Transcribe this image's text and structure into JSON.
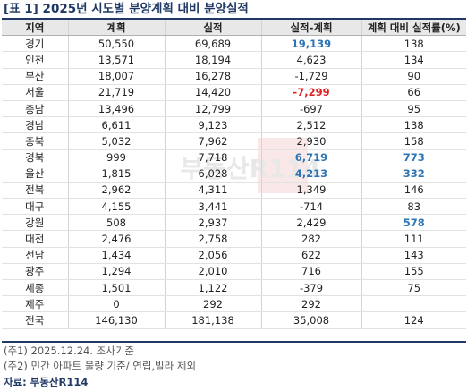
{
  "title": "[표 1] 2025년 시도별 분양계획 대비 분양실적",
  "columns": [
    "지역",
    "계획",
    "실적",
    "실적-계획",
    "계획 대비 실적률(%)"
  ],
  "rows": [
    {
      "region": "경기",
      "plan": "50,550",
      "actual": "69,689",
      "diff": "19,139",
      "rate": "138",
      "diff_style": "blue",
      "rate_style": ""
    },
    {
      "region": "인천",
      "plan": "13,571",
      "actual": "18,194",
      "diff": "4,623",
      "rate": "134",
      "diff_style": "",
      "rate_style": ""
    },
    {
      "region": "부산",
      "plan": "18,007",
      "actual": "16,278",
      "diff": "-1,729",
      "rate": "90",
      "diff_style": "",
      "rate_style": ""
    },
    {
      "region": "서울",
      "plan": "21,719",
      "actual": "14,420",
      "diff": "-7,299",
      "rate": "66",
      "diff_style": "red",
      "rate_style": ""
    },
    {
      "region": "충남",
      "plan": "13,496",
      "actual": "12,799",
      "diff": "-697",
      "rate": "95",
      "diff_style": "",
      "rate_style": ""
    },
    {
      "region": "경남",
      "plan": "6,611",
      "actual": "9,123",
      "diff": "2,512",
      "rate": "138",
      "diff_style": "",
      "rate_style": ""
    },
    {
      "region": "충북",
      "plan": "5,032",
      "actual": "7,962",
      "diff": "2,930",
      "rate": "158",
      "diff_style": "",
      "rate_style": ""
    },
    {
      "region": "경북",
      "plan": "999",
      "actual": "7,718",
      "diff": "6,719",
      "rate": "773",
      "diff_style": "blue",
      "rate_style": "blue"
    },
    {
      "region": "울산",
      "plan": "1,815",
      "actual": "6,028",
      "diff": "4,213",
      "rate": "332",
      "diff_style": "blue",
      "rate_style": "blue"
    },
    {
      "region": "전북",
      "plan": "2,962",
      "actual": "4,311",
      "diff": "1,349",
      "rate": "146",
      "diff_style": "",
      "rate_style": ""
    },
    {
      "region": "대구",
      "plan": "4,155",
      "actual": "3,441",
      "diff": "-714",
      "rate": "83",
      "diff_style": "",
      "rate_style": ""
    },
    {
      "region": "강원",
      "plan": "508",
      "actual": "2,937",
      "diff": "2,429",
      "rate": "578",
      "diff_style": "",
      "rate_style": "blue"
    },
    {
      "region": "대전",
      "plan": "2,476",
      "actual": "2,758",
      "diff": "282",
      "rate": "111",
      "diff_style": "",
      "rate_style": ""
    },
    {
      "region": "전남",
      "plan": "1,434",
      "actual": "2,056",
      "diff": "622",
      "rate": "143",
      "diff_style": "",
      "rate_style": ""
    },
    {
      "region": "광주",
      "plan": "1,294",
      "actual": "2,010",
      "diff": "716",
      "rate": "155",
      "diff_style": "",
      "rate_style": ""
    },
    {
      "region": "세종",
      "plan": "1,501",
      "actual": "1,122",
      "diff": "-379",
      "rate": "75",
      "diff_style": "",
      "rate_style": ""
    },
    {
      "region": "제주",
      "plan": "0",
      "actual": "292",
      "diff": "292",
      "rate": "",
      "diff_style": "",
      "rate_style": ""
    }
  ],
  "total": {
    "region": "전국",
    "plan": "146,130",
    "actual": "181,138",
    "diff": "35,008",
    "rate": "124"
  },
  "notes": [
    "(주1) 2025.12.24. 조사기준",
    "(주2) 민간 아파트 물량 기준/ 연립,빌라 제외"
  ],
  "source": "자료: 부동산R114",
  "watermark_text": "부동산R114",
  "colors": {
    "header_bg": "#e8e8e8",
    "title": "#1f3864",
    "highlight_blue": "#2e75b6",
    "highlight_red": "#e02020"
  }
}
